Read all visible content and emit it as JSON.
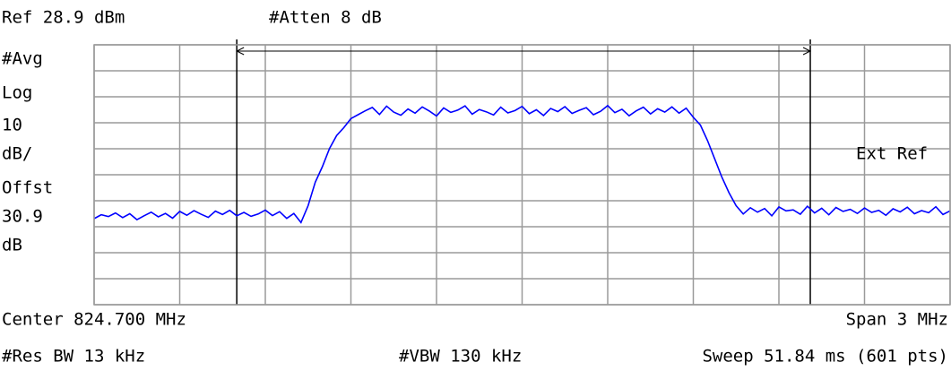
{
  "header": {
    "ref": "Ref 28.9 dBm",
    "atten": "#Atten 8 dB"
  },
  "side_labels": [
    "#Avg",
    "Log",
    "10",
    "dB/",
    "Offst",
    "30.9",
    "dB"
  ],
  "ext_ref": "Ext Ref",
  "footer": {
    "center": "Center 824.700 MHz",
    "span": "Span 3 MHz",
    "rbw": "#Res BW 13 kHz",
    "vbw": "#VBW 130 kHz",
    "sweep": "Sweep 51.84 ms (601 pts)"
  },
  "chart_data": {
    "type": "line",
    "series": [
      {
        "color": "#0000ff",
        "values": [
          -38,
          -36.5,
          -37.2,
          -35.8,
          -37.6,
          -36.1,
          -38.4,
          -36.9,
          -35.5,
          -37.3,
          -36.0,
          -37.8,
          -35.2,
          -36.7,
          -34.9,
          -36.3,
          -37.5,
          -35.1,
          -36.4,
          -34.8,
          -36.9,
          -35.6,
          -37.1,
          -36.2,
          -34.7,
          -36.8,
          -35.3,
          -37.9,
          -36.0,
          -39.5,
          -33,
          -24,
          -18,
          -11,
          -6,
          -3,
          0.5,
          2.0,
          3.5,
          4.8,
          2.1,
          5.3,
          3.0,
          1.8,
          4.2,
          2.6,
          5.0,
          3.4,
          1.5,
          4.6,
          2.9,
          3.8,
          5.4,
          2.2,
          4.0,
          3.1,
          1.9,
          4.9,
          2.7,
          3.6,
          5.2,
          2.4,
          3.9,
          1.7,
          4.4,
          3.2,
          5.1,
          2.5,
          3.7,
          4.7,
          2.0,
          3.3,
          5.5,
          2.8,
          4.1,
          1.6,
          3.5,
          4.9,
          2.3,
          4.3,
          3.0,
          5.0,
          2.6,
          4.5,
          1.0,
          -2,
          -8,
          -15,
          -22,
          -28,
          -33,
          -36.2,
          -33.8,
          -35.5,
          -34.1,
          -36.9,
          -33.5,
          -35.0,
          -34.6,
          -36.3,
          -33.2,
          -35.8,
          -34.0,
          -36.5,
          -33.7,
          -35.2,
          -34.4,
          -36.0,
          -33.9,
          -35.6,
          -34.8,
          -36.7,
          -34.2,
          -35.4,
          -33.6,
          -36.1,
          -34.9,
          -35.7,
          -33.4,
          -36.4,
          -35.0
        ]
      }
    ],
    "xlim": [
      823.2,
      826.2
    ],
    "xticks": [
      823.2,
      823.5,
      823.8,
      824.1,
      824.4,
      824.7,
      825.0,
      825.3,
      825.6,
      825.9,
      826.2
    ],
    "ylim": [
      -71.1,
      28.9
    ],
    "yticks": [
      28.9,
      18.9,
      8.9,
      -1.1,
      -11.1,
      -21.1,
      -31.1,
      -41.1,
      -51.1,
      -61.1,
      -71.1
    ],
    "markers": [
      823.7,
      825.71
    ],
    "grid": true
  }
}
